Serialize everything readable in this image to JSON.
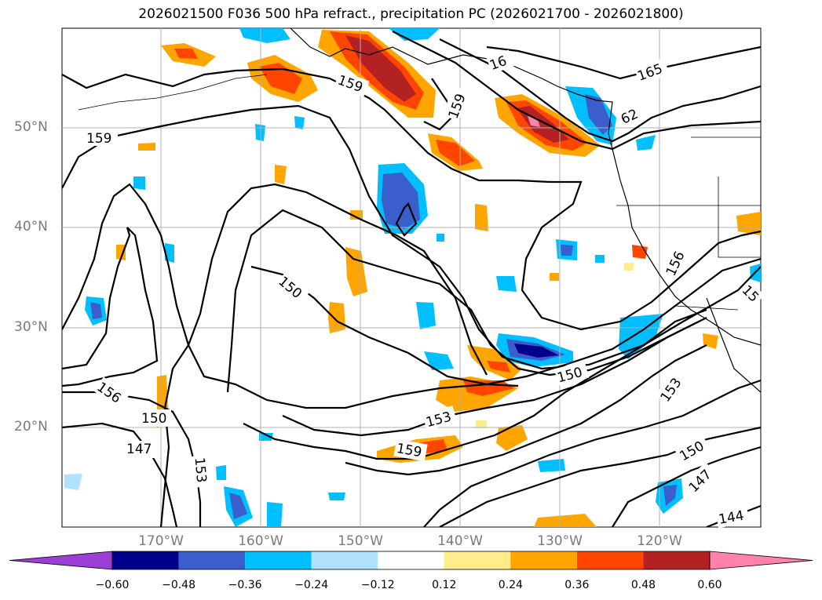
{
  "title": "2026021500 F036 500 hPa refract., precipitation PC (2026021700 - 2026021800)",
  "lat_labels": [
    "50°N",
    "40°N",
    "30°N",
    "20°N"
  ],
  "lon_labels": [
    "170°W",
    "160°W",
    "150°W",
    "140°W",
    "130°W",
    "120°W"
  ],
  "colorbar": {
    "ticks": [
      "−0.60",
      "−0.48",
      "−0.36",
      "−0.24",
      "−0.12",
      "0.12",
      "0.24",
      "0.36",
      "0.48",
      "0.60"
    ],
    "colors": [
      "#9b3fd6",
      "#00008b",
      "#3a5fcd",
      "#00bfff",
      "#b0e2ff",
      "#ffffff",
      "#ffec8b",
      "#ffa500",
      "#ff4500",
      "#b22222",
      "#ff82ab"
    ]
  },
  "contour_labels": [
    "159",
    "159",
    "159",
    "16",
    "165",
    "62",
    "156",
    "15",
    "150",
    "150",
    "156",
    "150",
    "153",
    "153",
    "159",
    "147",
    "150",
    "147",
    "144",
    "153"
  ]
}
